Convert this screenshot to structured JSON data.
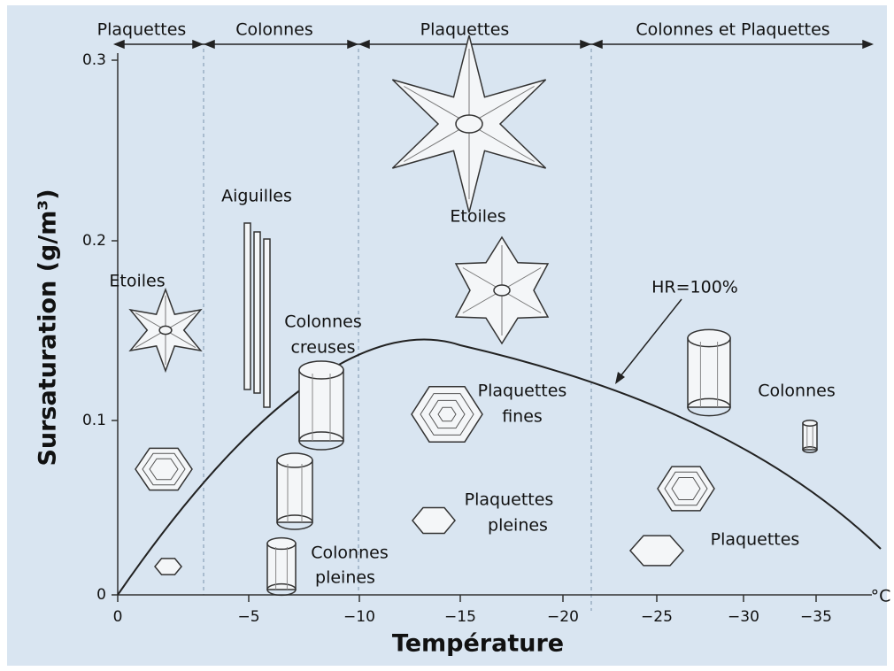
{
  "regimes": [
    "Plaquettes",
    "Colonnes",
    "Plaquettes",
    "Colonnes et Plaquettes"
  ],
  "y_axis": {
    "label": "Sursaturation (g/m³)",
    "ticks": [
      "0",
      "0.1",
      "0.2",
      "0.3"
    ]
  },
  "x_axis": {
    "label": "Température",
    "unit": "°C",
    "ticks": [
      "0",
      "−5",
      "−10",
      "−15",
      "−20",
      "−25",
      "−30",
      "−35"
    ]
  },
  "curve_label": "HR=100%",
  "crystals": [
    {
      "lines": [
        "Etoiles"
      ]
    },
    {
      "lines": [
        "Aiguilles"
      ]
    },
    {
      "lines": [
        "Colonnes",
        "creuses"
      ]
    },
    {
      "lines": [
        "Etoiles"
      ]
    },
    {
      "lines": [
        "Plaquettes",
        "fines"
      ]
    },
    {
      "lines": [
        "Plaquettes",
        "pleines"
      ]
    },
    {
      "lines": [
        "Colonnes",
        "pleines"
      ]
    },
    {
      "lines": [
        "Colonnes"
      ]
    },
    {
      "lines": [
        "Plaquettes"
      ]
    }
  ]
}
